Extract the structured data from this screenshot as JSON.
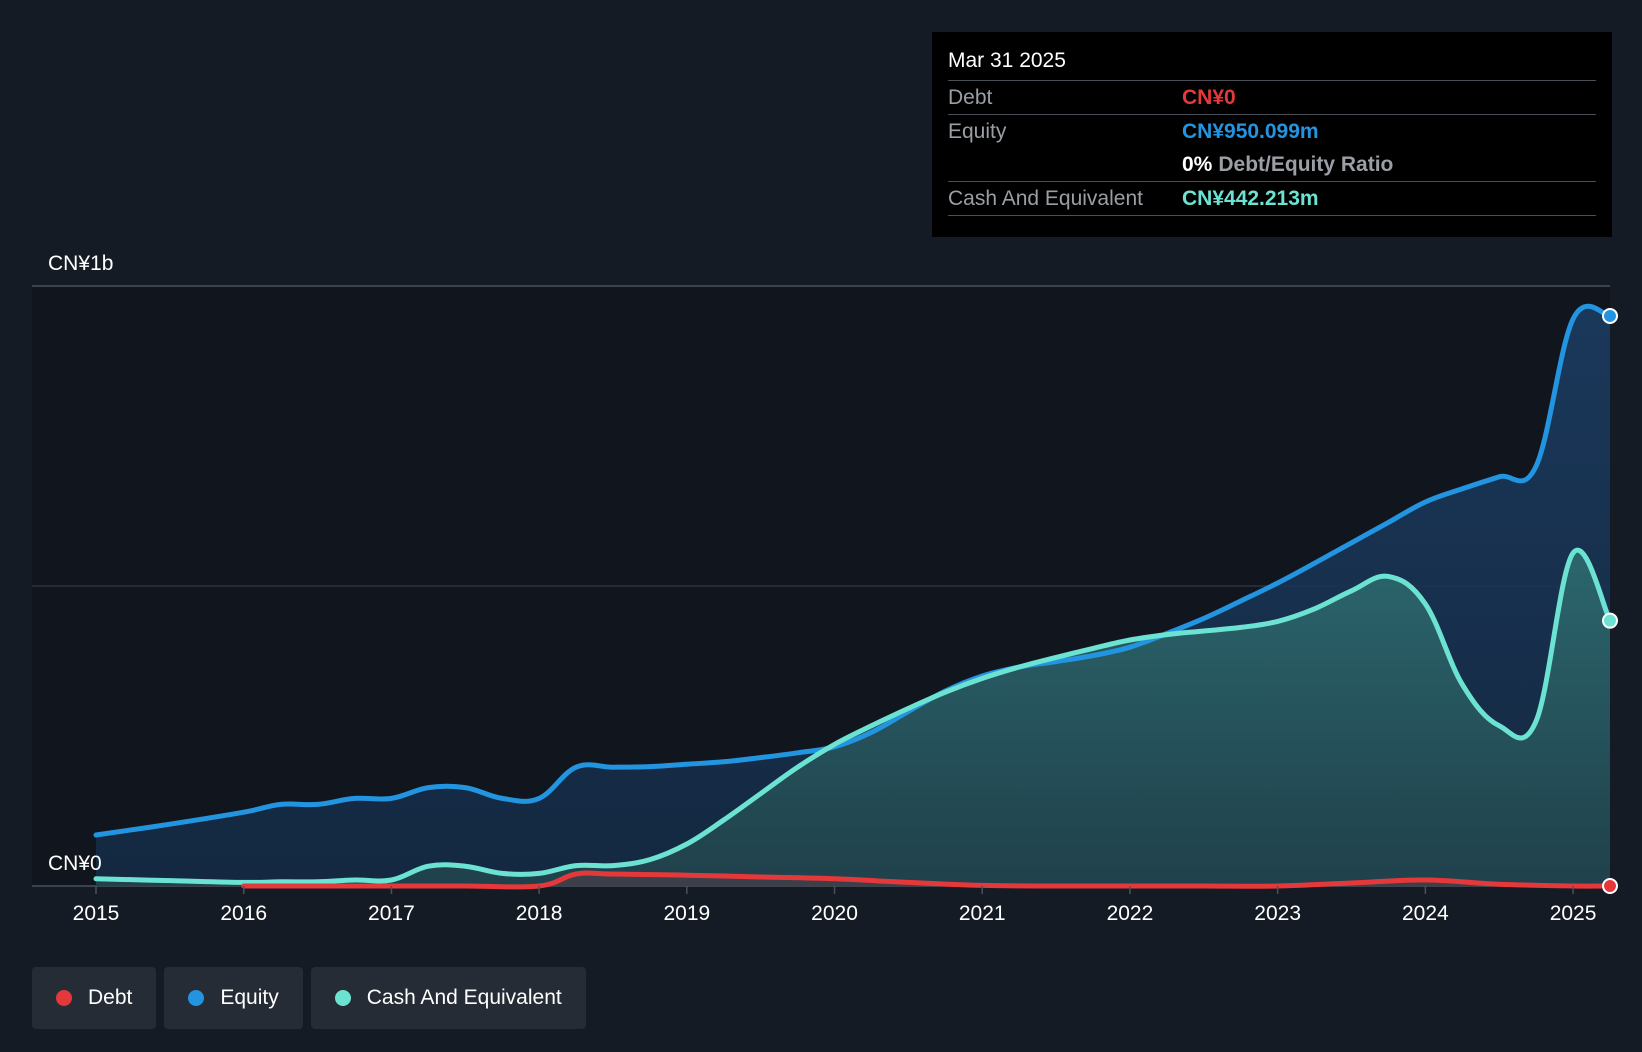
{
  "chart_data": {
    "type": "area",
    "title": "",
    "y_axis_labels": {
      "top": "CN¥1b",
      "bottom": "CN¥0"
    },
    "ylim": [
      0,
      1000
    ],
    "xlim": [
      2015,
      2025.25
    ],
    "x_ticks": [
      "2015",
      "2016",
      "2017",
      "2018",
      "2019",
      "2020",
      "2021",
      "2022",
      "2023",
      "2024",
      "2025"
    ],
    "grid": true,
    "legend_position": "bottom-left",
    "series": [
      {
        "name": "Equity",
        "unit": "CN¥m",
        "color": "#2394df",
        "points": [
          [
            2015,
            85
          ],
          [
            2015.5,
            103
          ],
          [
            2016,
            123
          ],
          [
            2016.25,
            136
          ],
          [
            2016.5,
            136
          ],
          [
            2016.75,
            146
          ],
          [
            2017,
            146
          ],
          [
            2017.25,
            164
          ],
          [
            2017.5,
            164
          ],
          [
            2017.75,
            146
          ],
          [
            2018,
            146
          ],
          [
            2018.25,
            198
          ],
          [
            2018.5,
            198
          ],
          [
            2018.75,
            199
          ],
          [
            2019,
            203
          ],
          [
            2019.25,
            207
          ],
          [
            2019.5,
            214
          ],
          [
            2019.75,
            222
          ],
          [
            2020,
            232
          ],
          [
            2020.25,
            256
          ],
          [
            2020.5,
            291
          ],
          [
            2020.75,
            325
          ],
          [
            2021,
            350
          ],
          [
            2021.25,
            365
          ],
          [
            2021.5,
            374
          ],
          [
            2021.75,
            384
          ],
          [
            2022,
            398
          ],
          [
            2022.25,
            421
          ],
          [
            2022.5,
            446
          ],
          [
            2022.75,
            475
          ],
          [
            2023,
            505
          ],
          [
            2023.25,
            538
          ],
          [
            2023.5,
            572
          ],
          [
            2023.75,
            606
          ],
          [
            2024,
            640
          ],
          [
            2024.25,
            662
          ],
          [
            2024.5,
            682
          ],
          [
            2024.75,
            700
          ],
          [
            2025,
            945
          ],
          [
            2025.25,
            950.099
          ]
        ]
      },
      {
        "name": "Cash And Equivalent",
        "unit": "CN¥m",
        "color": "#6ce3d2",
        "points": [
          [
            2015,
            12
          ],
          [
            2015.5,
            9
          ],
          [
            2016,
            6
          ],
          [
            2016.25,
            7
          ],
          [
            2016.5,
            7
          ],
          [
            2016.75,
            10
          ],
          [
            2017,
            10
          ],
          [
            2017.25,
            33
          ],
          [
            2017.5,
            33
          ],
          [
            2017.75,
            21
          ],
          [
            2018,
            21
          ],
          [
            2018.25,
            34
          ],
          [
            2018.5,
            34
          ],
          [
            2018.75,
            44
          ],
          [
            2019,
            70
          ],
          [
            2019.25,
            110
          ],
          [
            2019.5,
            154
          ],
          [
            2019.75,
            198
          ],
          [
            2020,
            236
          ],
          [
            2020.25,
            267
          ],
          [
            2020.5,
            296
          ],
          [
            2020.75,
            323
          ],
          [
            2021,
            346
          ],
          [
            2021.25,
            365
          ],
          [
            2021.5,
            381
          ],
          [
            2021.75,
            396
          ],
          [
            2022,
            410
          ],
          [
            2022.25,
            419
          ],
          [
            2022.5,
            425
          ],
          [
            2022.75,
            431
          ],
          [
            2023,
            441
          ],
          [
            2023.25,
            462
          ],
          [
            2023.5,
            492
          ],
          [
            2023.75,
            516
          ],
          [
            2024,
            470
          ],
          [
            2024.25,
            336
          ],
          [
            2024.5,
            267
          ],
          [
            2024.75,
            275
          ],
          [
            2025,
            555
          ],
          [
            2025.25,
            442.213
          ]
        ]
      },
      {
        "name": "Debt",
        "unit": "CN¥m",
        "color": "#e5383b",
        "points": [
          [
            2016,
            0
          ],
          [
            2016.5,
            0
          ],
          [
            2017,
            0
          ],
          [
            2017.5,
            0
          ],
          [
            2018,
            0
          ],
          [
            2018.25,
            20
          ],
          [
            2018.5,
            20
          ],
          [
            2019,
            18
          ],
          [
            2019.5,
            15
          ],
          [
            2020,
            12
          ],
          [
            2020.5,
            6
          ],
          [
            2021,
            1
          ],
          [
            2021.5,
            0
          ],
          [
            2022,
            0
          ],
          [
            2022.5,
            0
          ],
          [
            2023,
            0
          ],
          [
            2023.5,
            5
          ],
          [
            2024,
            10
          ],
          [
            2024.5,
            3
          ],
          [
            2025,
            0
          ],
          [
            2025.25,
            0
          ]
        ]
      }
    ]
  },
  "tooltip": {
    "date": "Mar 31 2025",
    "debt_label": "Debt",
    "debt_value": "CN¥0",
    "equity_label": "Equity",
    "equity_value": "CN¥950.099m",
    "ratio_value": "0%",
    "ratio_label": "Debt/Equity Ratio",
    "cash_label": "Cash And Equivalent",
    "cash_value": "CN¥442.213m"
  },
  "legend": {
    "items": [
      {
        "label": "Debt",
        "color": "#e5383b"
      },
      {
        "label": "Equity",
        "color": "#2394df"
      },
      {
        "label": "Cash And Equivalent",
        "color": "#6ce3d2"
      }
    ]
  }
}
